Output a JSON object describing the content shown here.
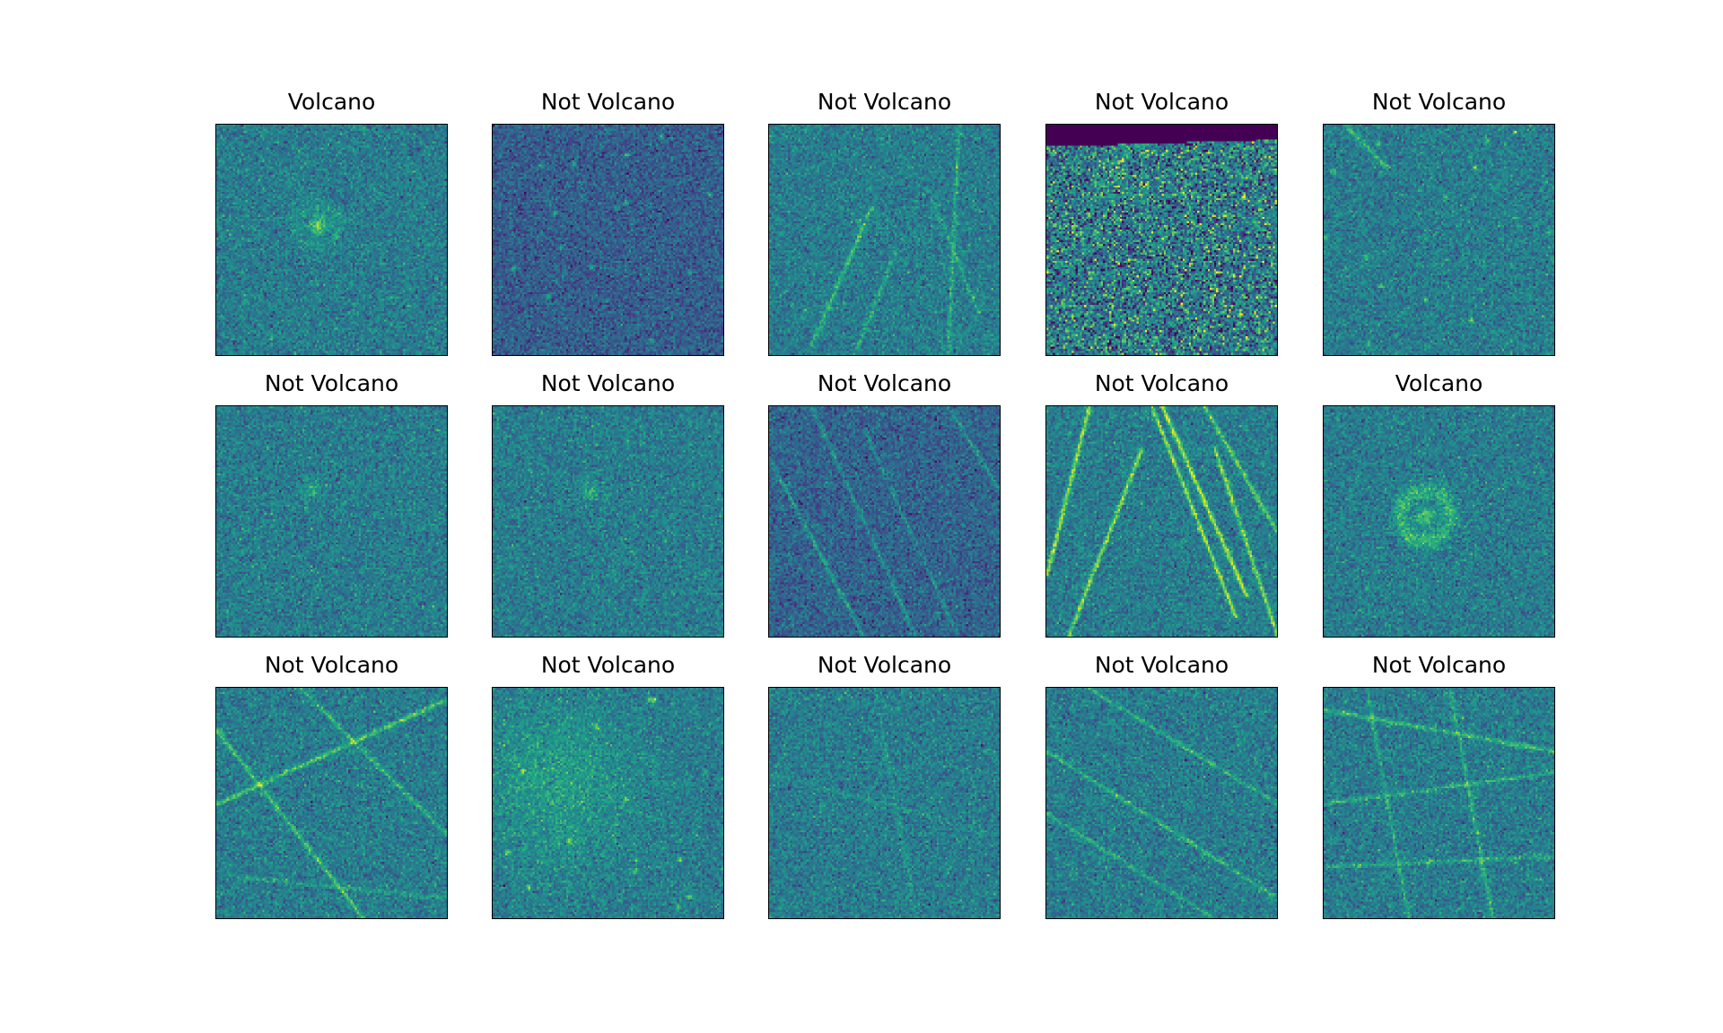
{
  "figure": {
    "colormap": "viridis",
    "panels": [
      {
        "title": "Volcano",
        "pattern": "volcano-faint"
      },
      {
        "title": "Not Volcano",
        "pattern": "dark-spotted"
      },
      {
        "title": "Not Volcano",
        "pattern": "bright-lineaments"
      },
      {
        "title": "Not Volcano",
        "pattern": "top-cut-noisy"
      },
      {
        "title": "Not Volcano",
        "pattern": "noise"
      },
      {
        "title": "Not Volcano",
        "pattern": "faint-spot"
      },
      {
        "title": "Not Volcano",
        "pattern": "faint-spot"
      },
      {
        "title": "Not Volcano",
        "pattern": "dark-diagonal-streaks"
      },
      {
        "title": "Not Volcano",
        "pattern": "bright-diagonal-streaks"
      },
      {
        "title": "Volcano",
        "pattern": "volcano-ring"
      },
      {
        "title": "Not Volcano",
        "pattern": "crossing-lines"
      },
      {
        "title": "Not Volcano",
        "pattern": "bright-texture"
      },
      {
        "title": "Not Volcano",
        "pattern": "faint-texture"
      },
      {
        "title": "Not Volcano",
        "pattern": "diagonal-lines"
      },
      {
        "title": "Not Volcano",
        "pattern": "network-lines"
      }
    ]
  }
}
